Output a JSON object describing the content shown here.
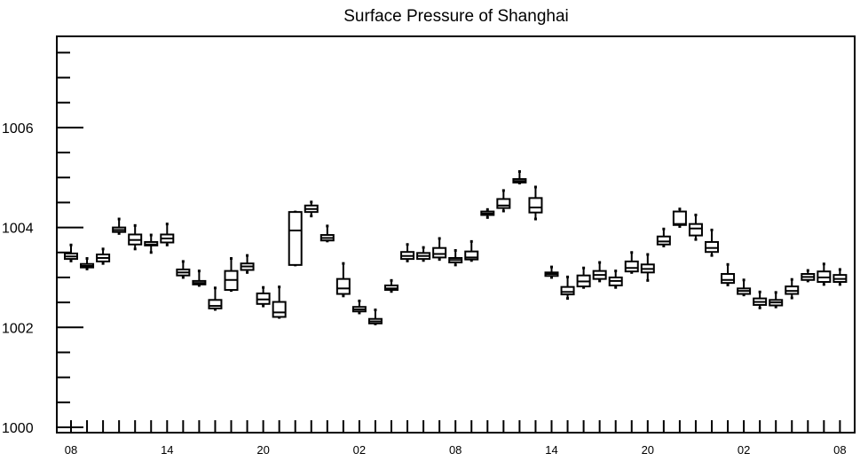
{
  "chart_data": {
    "type": "boxplot",
    "title": "Surface Pressure of Shanghai",
    "xlabel": "",
    "ylabel": "",
    "ylim": [
      1000,
      1007.8
    ],
    "y_major_ticks": [
      1000,
      1002,
      1004,
      1006
    ],
    "y_major_tick_labels": [
      "1000",
      "1002",
      "1004",
      "1006"
    ],
    "x_tick_labels": [
      {
        "index": 0,
        "label": "08"
      },
      {
        "index": 6,
        "label": "14"
      },
      {
        "index": 12,
        "label": "20"
      },
      {
        "index": 18,
        "label": "02"
      },
      {
        "index": 24,
        "label": "08"
      },
      {
        "index": 30,
        "label": "14"
      },
      {
        "index": 36,
        "label": "20"
      },
      {
        "index": 42,
        "label": "02"
      },
      {
        "index": 48,
        "label": "08"
      }
    ],
    "boxes": [
      {
        "index": 0,
        "min": 1003.33,
        "q1": 1003.37,
        "median": 1003.42,
        "q3": 1003.48,
        "max": 1003.65
      },
      {
        "index": 1,
        "min": 1003.17,
        "q1": 1003.2,
        "median": 1003.23,
        "q3": 1003.27,
        "max": 1003.38
      },
      {
        "index": 2,
        "min": 1003.28,
        "q1": 1003.32,
        "median": 1003.39,
        "q3": 1003.46,
        "max": 1003.57
      },
      {
        "index": 3,
        "min": 1003.88,
        "q1": 1003.91,
        "median": 1003.95,
        "q3": 1004.0,
        "max": 1004.17
      },
      {
        "index": 4,
        "min": 1003.57,
        "q1": 1003.66,
        "median": 1003.75,
        "q3": 1003.86,
        "max": 1004.04
      },
      {
        "index": 5,
        "min": 1003.5,
        "q1": 1003.64,
        "median": 1003.66,
        "q3": 1003.71,
        "max": 1003.85
      },
      {
        "index": 6,
        "min": 1003.65,
        "q1": 1003.7,
        "median": 1003.78,
        "q3": 1003.86,
        "max": 1004.07
      },
      {
        "index": 7,
        "min": 1003.0,
        "q1": 1003.04,
        "median": 1003.1,
        "q3": 1003.16,
        "max": 1003.32
      },
      {
        "index": 8,
        "min": 1002.84,
        "q1": 1002.86,
        "median": 1002.89,
        "q3": 1002.93,
        "max": 1003.13
      },
      {
        "index": 9,
        "min": 1002.36,
        "q1": 1002.38,
        "median": 1002.43,
        "q3": 1002.55,
        "max": 1002.79
      },
      {
        "index": 10,
        "min": 1002.74,
        "q1": 1002.75,
        "median": 1002.95,
        "q3": 1003.13,
        "max": 1003.38
      },
      {
        "index": 11,
        "min": 1003.1,
        "q1": 1003.15,
        "median": 1003.22,
        "q3": 1003.28,
        "max": 1003.44
      },
      {
        "index": 12,
        "min": 1002.43,
        "q1": 1002.47,
        "median": 1002.56,
        "q3": 1002.68,
        "max": 1002.8
      },
      {
        "index": 13,
        "min": 1002.2,
        "q1": 1002.21,
        "median": 1002.3,
        "q3": 1002.51,
        "max": 1002.81
      },
      {
        "index": 14,
        "min": 1003.25,
        "q1": 1003.25,
        "median": 1003.94,
        "q3": 1004.31,
        "max": 1004.31
      },
      {
        "index": 15,
        "min": 1004.23,
        "q1": 1004.31,
        "median": 1004.37,
        "q3": 1004.44,
        "max": 1004.51
      },
      {
        "index": 16,
        "min": 1003.73,
        "q1": 1003.74,
        "median": 1003.79,
        "q3": 1003.85,
        "max": 1004.03
      },
      {
        "index": 17,
        "min": 1002.63,
        "q1": 1002.67,
        "median": 1002.78,
        "q3": 1002.97,
        "max": 1003.28
      },
      {
        "index": 18,
        "min": 1002.29,
        "q1": 1002.32,
        "median": 1002.36,
        "q3": 1002.41,
        "max": 1002.53
      },
      {
        "index": 19,
        "min": 1002.07,
        "q1": 1002.08,
        "median": 1002.12,
        "q3": 1002.17,
        "max": 1002.35
      },
      {
        "index": 20,
        "min": 1002.72,
        "q1": 1002.75,
        "median": 1002.78,
        "q3": 1002.84,
        "max": 1002.94
      },
      {
        "index": 21,
        "min": 1003.33,
        "q1": 1003.37,
        "median": 1003.43,
        "q3": 1003.51,
        "max": 1003.66
      },
      {
        "index": 22,
        "min": 1003.34,
        "q1": 1003.37,
        "median": 1003.43,
        "q3": 1003.49,
        "max": 1003.6
      },
      {
        "index": 23,
        "min": 1003.36,
        "q1": 1003.4,
        "median": 1003.47,
        "q3": 1003.59,
        "max": 1003.78
      },
      {
        "index": 24,
        "min": 1003.25,
        "q1": 1003.3,
        "median": 1003.35,
        "q3": 1003.39,
        "max": 1003.54
      },
      {
        "index": 25,
        "min": 1003.34,
        "q1": 1003.36,
        "median": 1003.4,
        "q3": 1003.52,
        "max": 1003.72
      },
      {
        "index": 26,
        "min": 1004.2,
        "q1": 1004.25,
        "median": 1004.28,
        "q3": 1004.32,
        "max": 1004.36
      },
      {
        "index": 27,
        "min": 1004.33,
        "q1": 1004.39,
        "median": 1004.44,
        "q3": 1004.57,
        "max": 1004.74
      },
      {
        "index": 28,
        "min": 1004.89,
        "q1": 1004.9,
        "median": 1004.93,
        "q3": 1004.97,
        "max": 1005.12
      },
      {
        "index": 29,
        "min": 1004.17,
        "q1": 1004.3,
        "median": 1004.4,
        "q3": 1004.59,
        "max": 1004.81
      },
      {
        "index": 30,
        "min": 1003.0,
        "q1": 1003.03,
        "median": 1003.07,
        "q3": 1003.1,
        "max": 1003.21
      },
      {
        "index": 31,
        "min": 1002.58,
        "q1": 1002.66,
        "median": 1002.71,
        "q3": 1002.81,
        "max": 1003.01
      },
      {
        "index": 32,
        "min": 1002.8,
        "q1": 1002.82,
        "median": 1002.92,
        "q3": 1003.04,
        "max": 1003.19
      },
      {
        "index": 33,
        "min": 1002.93,
        "q1": 1002.97,
        "median": 1003.05,
        "q3": 1003.13,
        "max": 1003.3
      },
      {
        "index": 34,
        "min": 1002.8,
        "q1": 1002.84,
        "median": 1002.93,
        "q3": 1003.0,
        "max": 1003.13
      },
      {
        "index": 35,
        "min": 1003.1,
        "q1": 1003.12,
        "median": 1003.19,
        "q3": 1003.32,
        "max": 1003.5
      },
      {
        "index": 36,
        "min": 1002.94,
        "q1": 1003.1,
        "median": 1003.17,
        "q3": 1003.26,
        "max": 1003.46
      },
      {
        "index": 37,
        "min": 1003.63,
        "q1": 1003.66,
        "median": 1003.72,
        "q3": 1003.82,
        "max": 1003.97
      },
      {
        "index": 38,
        "min": 1004.02,
        "q1": 1004.05,
        "median": 1004.07,
        "q3": 1004.32,
        "max": 1004.37
      },
      {
        "index": 39,
        "min": 1003.76,
        "q1": 1003.84,
        "median": 1003.98,
        "q3": 1004.07,
        "max": 1004.25
      },
      {
        "index": 40,
        "min": 1003.44,
        "q1": 1003.51,
        "median": 1003.59,
        "q3": 1003.71,
        "max": 1003.95
      },
      {
        "index": 41,
        "min": 1002.85,
        "q1": 1002.89,
        "median": 1002.95,
        "q3": 1003.07,
        "max": 1003.26
      },
      {
        "index": 42,
        "min": 1002.65,
        "q1": 1002.67,
        "median": 1002.73,
        "q3": 1002.78,
        "max": 1002.95
      },
      {
        "index": 43,
        "min": 1002.39,
        "q1": 1002.45,
        "median": 1002.51,
        "q3": 1002.58,
        "max": 1002.71
      },
      {
        "index": 44,
        "min": 1002.41,
        "q1": 1002.44,
        "median": 1002.5,
        "q3": 1002.55,
        "max": 1002.7
      },
      {
        "index": 45,
        "min": 1002.59,
        "q1": 1002.67,
        "median": 1002.73,
        "q3": 1002.82,
        "max": 1002.96
      },
      {
        "index": 46,
        "min": 1002.93,
        "q1": 1002.95,
        "median": 1003.01,
        "q3": 1003.07,
        "max": 1003.14
      },
      {
        "index": 47,
        "min": 1002.86,
        "q1": 1002.91,
        "median": 1003.0,
        "q3": 1003.12,
        "max": 1003.27
      },
      {
        "index": 48,
        "min": 1002.86,
        "q1": 1002.91,
        "median": 1002.97,
        "q3": 1003.05,
        "max": 1003.16
      }
    ],
    "grid": false,
    "legend": "none"
  }
}
